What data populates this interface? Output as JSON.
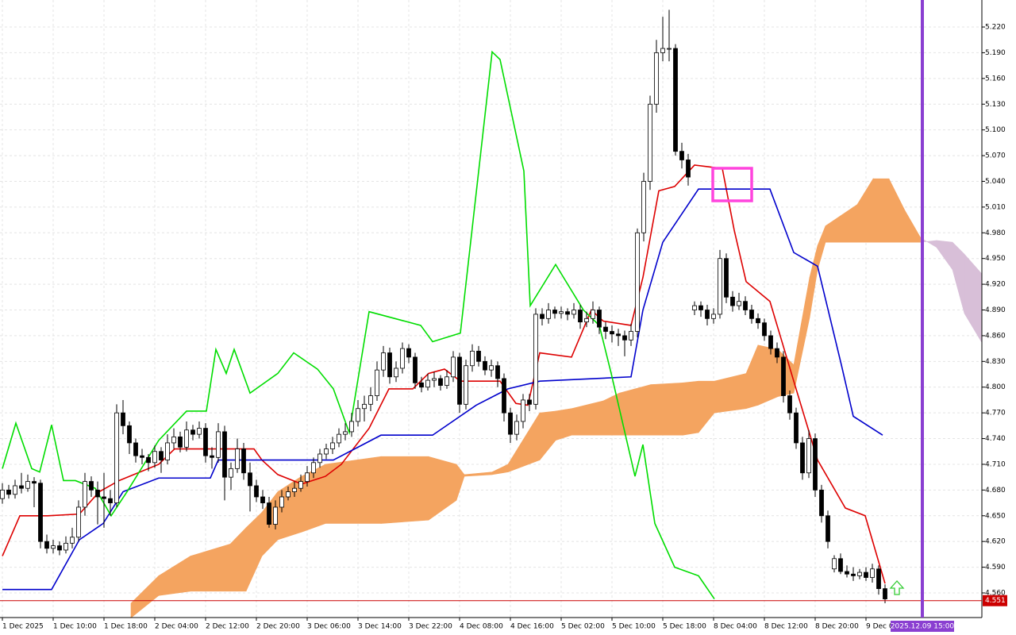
{
  "chart_data": {
    "type": "candlestick",
    "xlim": [
      -0.375,
      154.25
    ],
    "ylim": [
      4.5313,
      5.2515
    ],
    "grid": true,
    "colors": {
      "bull_body": "#ffffff",
      "bear_body": "#000000",
      "candle_line": "#000000",
      "cloud_bull": "#f4a460",
      "cloud_bear": "#d8bfd8",
      "price_line": "#cc0000",
      "cursor": "#8a3fd1"
    },
    "yticks": [
      {
        "value": 5.22,
        "label": "5.220"
      },
      {
        "value": 5.19,
        "label": "5.190"
      },
      {
        "value": 5.16,
        "label": "5.160"
      },
      {
        "value": 5.13,
        "label": "5.130"
      },
      {
        "value": 5.1,
        "label": "5.100"
      },
      {
        "value": 5.07,
        "label": "5.070"
      },
      {
        "value": 5.04,
        "label": "5.040"
      },
      {
        "value": 5.01,
        "label": "5.010"
      },
      {
        "value": 4.98,
        "label": "4.980"
      },
      {
        "value": 4.95,
        "label": "4.950"
      },
      {
        "value": 4.92,
        "label": "4.920"
      },
      {
        "value": 4.89,
        "label": "4.890"
      },
      {
        "value": 4.86,
        "label": "4.860"
      },
      {
        "value": 4.83,
        "label": "4.830"
      },
      {
        "value": 4.8,
        "label": "4.800"
      },
      {
        "value": 4.77,
        "label": "4.770"
      },
      {
        "value": 4.74,
        "label": "4.740"
      },
      {
        "value": 4.71,
        "label": "4.710"
      },
      {
        "value": 4.68,
        "label": "4.680"
      },
      {
        "value": 4.65,
        "label": "4.650"
      },
      {
        "value": 4.62,
        "label": "4.620"
      },
      {
        "value": 4.59,
        "label": "4.590"
      },
      {
        "value": 4.56,
        "label": "4.560"
      }
    ],
    "xticks": [
      {
        "value": 0,
        "label": "1 Dec 2025"
      },
      {
        "value": 8,
        "label": "1 Dec 10:00"
      },
      {
        "value": 16,
        "label": "1 Dec 18:00"
      },
      {
        "value": 24,
        "label": "2 Dec 04:00"
      },
      {
        "value": 32,
        "label": "2 Dec 12:00"
      },
      {
        "value": 40,
        "label": "2 Dec 20:00"
      },
      {
        "value": 48,
        "label": "3 Dec 06:00"
      },
      {
        "value": 56,
        "label": "3 Dec 14:00"
      },
      {
        "value": 64,
        "label": "3 Dec 22:00"
      },
      {
        "value": 72,
        "label": "4 Dec 08:00"
      },
      {
        "value": 80,
        "label": "4 Dec 16:00"
      },
      {
        "value": 88,
        "label": "5 Dec 02:00"
      },
      {
        "value": 96,
        "label": "5 Dec 10:00"
      },
      {
        "value": 104,
        "label": "5 Dec 18:00"
      },
      {
        "value": 112,
        "label": "8 Dec 04:00"
      },
      {
        "value": 120,
        "label": "8 Dec 12:00"
      },
      {
        "value": 128,
        "label": "8 Dec 20:00"
      },
      {
        "value": 136,
        "label": "9 Dec 04:00"
      }
    ],
    "candles": [
      [
        4.67,
        4.688,
        4.664,
        4.68
      ],
      [
        4.68,
        4.686,
        4.67,
        4.675
      ],
      [
        4.675,
        4.692,
        4.67,
        4.685
      ],
      [
        4.685,
        4.7,
        4.676,
        4.682
      ],
      [
        4.682,
        4.698,
        4.678,
        4.69
      ],
      [
        4.69,
        4.695,
        4.66,
        4.688
      ],
      [
        4.688,
        4.692,
        4.612,
        4.62
      ],
      [
        4.62,
        4.628,
        4.606,
        4.612
      ],
      [
        4.612,
        4.622,
        4.606,
        4.615
      ],
      [
        4.615,
        4.62,
        4.604,
        4.61
      ],
      [
        4.61,
        4.626,
        4.606,
        4.618
      ],
      [
        4.618,
        4.636,
        4.612,
        4.625
      ],
      [
        4.625,
        4.668,
        4.62,
        4.66
      ],
      [
        4.66,
        4.7,
        4.65,
        4.69
      ],
      [
        4.69,
        4.696,
        4.672,
        4.68
      ],
      [
        4.68,
        4.69,
        4.64,
        4.672
      ],
      [
        4.672,
        4.7,
        4.636,
        4.67
      ],
      [
        4.67,
        4.68,
        4.65,
        4.665
      ],
      [
        4.665,
        4.78,
        4.66,
        4.77
      ],
      [
        4.77,
        4.785,
        4.745,
        4.755
      ],
      [
        4.755,
        4.76,
        4.722,
        4.735
      ],
      [
        4.735,
        4.74,
        4.712,
        4.72
      ],
      [
        4.72,
        4.728,
        4.71,
        4.718
      ],
      [
        4.718,
        4.722,
        4.702,
        4.712
      ],
      [
        4.712,
        4.732,
        4.706,
        4.725
      ],
      [
        4.725,
        4.73,
        4.7,
        4.715
      ],
      [
        4.715,
        4.745,
        4.71,
        4.735
      ],
      [
        4.735,
        4.752,
        4.728,
        4.742
      ],
      [
        4.742,
        4.748,
        4.724,
        4.73
      ],
      [
        4.73,
        4.76,
        4.725,
        4.75
      ],
      [
        4.75,
        4.756,
        4.738,
        4.745
      ],
      [
        4.745,
        4.76,
        4.74,
        4.752
      ],
      [
        4.752,
        4.758,
        4.712,
        4.72
      ],
      [
        4.72,
        4.73,
        4.705,
        4.718
      ],
      [
        4.718,
        4.758,
        4.712,
        4.748
      ],
      [
        4.748,
        4.755,
        4.668,
        4.695
      ],
      [
        4.695,
        4.712,
        4.68,
        4.705
      ],
      [
        4.705,
        4.74,
        4.7,
        4.728
      ],
      [
        4.728,
        4.735,
        4.692,
        4.7
      ],
      [
        4.7,
        4.712,
        4.655,
        4.685
      ],
      [
        4.685,
        4.692,
        4.666,
        4.672
      ],
      [
        4.672,
        4.68,
        4.658,
        4.665
      ],
      [
        4.665,
        4.672,
        4.636,
        4.64
      ],
      [
        4.64,
        4.668,
        4.634,
        4.66
      ],
      [
        4.66,
        4.68,
        4.654,
        4.672
      ],
      [
        4.672,
        4.684,
        4.668,
        4.678
      ],
      [
        4.678,
        4.69,
        4.672,
        4.682
      ],
      [
        4.682,
        4.698,
        4.678,
        4.69
      ],
      [
        4.69,
        4.708,
        4.684,
        4.7
      ],
      [
        4.7,
        4.718,
        4.694,
        4.712
      ],
      [
        4.712,
        4.728,
        4.706,
        4.722
      ],
      [
        4.722,
        4.734,
        4.716,
        4.728
      ],
      [
        4.728,
        4.742,
        4.722,
        4.735
      ],
      [
        4.735,
        4.752,
        4.73,
        4.745
      ],
      [
        4.745,
        4.758,
        4.738,
        4.748
      ],
      [
        4.748,
        4.77,
        4.742,
        4.76
      ],
      [
        4.76,
        4.785,
        4.754,
        4.775
      ],
      [
        4.775,
        4.79,
        4.76,
        4.78
      ],
      [
        4.78,
        4.8,
        4.772,
        4.79
      ],
      [
        4.79,
        4.83,
        4.784,
        4.82
      ],
      [
        4.82,
        4.848,
        4.812,
        4.84
      ],
      [
        4.84,
        4.846,
        4.804,
        4.812
      ],
      [
        4.812,
        4.83,
        4.806,
        4.822
      ],
      [
        4.822,
        4.852,
        4.816,
        4.845
      ],
      [
        4.845,
        4.85,
        4.828,
        4.835
      ],
      [
        4.835,
        4.84,
        4.798,
        4.805
      ],
      [
        4.805,
        4.812,
        4.794,
        4.8
      ],
      [
        4.8,
        4.816,
        4.796,
        4.808
      ],
      [
        4.808,
        4.818,
        4.8,
        4.81
      ],
      [
        4.81,
        4.814,
        4.796,
        4.802
      ],
      [
        4.802,
        4.82,
        4.798,
        4.812
      ],
      [
        4.812,
        4.842,
        4.806,
        4.835
      ],
      [
        4.835,
        4.84,
        4.77,
        4.78
      ],
      [
        4.78,
        4.832,
        4.774,
        4.825
      ],
      [
        4.825,
        4.85,
        4.818,
        4.842
      ],
      [
        4.842,
        4.848,
        4.824,
        4.83
      ],
      [
        4.83,
        4.836,
        4.814,
        4.82
      ],
      [
        4.82,
        4.832,
        4.812,
        4.825
      ],
      [
        4.825,
        4.83,
        4.8,
        4.81
      ],
      [
        4.81,
        4.816,
        4.76,
        4.77
      ],
      [
        4.77,
        4.776,
        4.735,
        4.745
      ],
      [
        4.745,
        4.768,
        4.738,
        4.76
      ],
      [
        4.76,
        4.792,
        4.752,
        4.785
      ],
      [
        4.785,
        4.792,
        4.772,
        4.78
      ],
      [
        4.78,
        4.892,
        4.774,
        4.885
      ],
      [
        4.885,
        4.892,
        4.872,
        4.88
      ],
      [
        4.88,
        4.898,
        4.874,
        4.89
      ],
      [
        4.89,
        4.894,
        4.88,
        4.886
      ],
      [
        4.886,
        4.894,
        4.88,
        4.888
      ],
      [
        4.888,
        4.892,
        4.878,
        4.885
      ],
      [
        4.885,
        4.898,
        4.88,
        4.89
      ],
      [
        4.89,
        4.896,
        4.868,
        4.876
      ],
      [
        4.876,
        4.888,
        4.87,
        4.88
      ],
      [
        4.88,
        4.9,
        4.874,
        4.89
      ],
      [
        4.89,
        4.894,
        4.862,
        4.87
      ],
      [
        4.87,
        4.876,
        4.856,
        4.865
      ],
      [
        4.865,
        4.872,
        4.852,
        4.862
      ],
      [
        4.862,
        4.868,
        4.848,
        4.86
      ],
      [
        4.86,
        4.866,
        4.836,
        4.855
      ],
      [
        4.855,
        4.874,
        4.848,
        4.865
      ],
      [
        4.865,
        4.985,
        4.858,
        4.98
      ],
      [
        4.98,
        5.05,
        4.97,
        5.04
      ],
      [
        5.04,
        5.14,
        5.03,
        5.13
      ],
      [
        5.13,
        5.205,
        5.12,
        5.19
      ],
      [
        5.19,
        5.232,
        5.18,
        5.195
      ],
      [
        5.195,
        5.24,
        5.18,
        5.195
      ],
      [
        5.195,
        5.2,
        5.07,
        5.075
      ],
      [
        5.075,
        5.085,
        5.055,
        5.065
      ],
      [
        5.065,
        5.072,
        5.035,
        5.045
      ],
      [
        4.89,
        4.9,
        4.884,
        4.895
      ],
      [
        4.895,
        4.9,
        4.882,
        4.89
      ],
      [
        4.89,
        4.896,
        4.872,
        4.88
      ],
      [
        4.88,
        4.892,
        4.874,
        4.885
      ],
      [
        4.885,
        4.96,
        4.88,
        4.95
      ],
      [
        4.95,
        4.956,
        4.898,
        4.905
      ],
      [
        4.905,
        4.912,
        4.888,
        4.895
      ],
      [
        4.895,
        4.91,
        4.89,
        4.9
      ],
      [
        4.9,
        4.906,
        4.884,
        4.89
      ],
      [
        4.89,
        4.896,
        4.874,
        4.88
      ],
      [
        4.88,
        4.886,
        4.868,
        4.875
      ],
      [
        4.875,
        4.88,
        4.854,
        4.86
      ],
      [
        4.86,
        4.866,
        4.838,
        4.845
      ],
      [
        4.845,
        4.852,
        4.828,
        4.835
      ],
      [
        4.835,
        4.842,
        4.782,
        4.79
      ],
      [
        4.79,
        4.796,
        4.762,
        4.77
      ],
      [
        4.77,
        4.776,
        4.728,
        4.735
      ],
      [
        4.735,
        4.742,
        4.692,
        4.7
      ],
      [
        4.7,
        4.75,
        4.694,
        4.74
      ],
      [
        4.74,
        4.746,
        4.672,
        4.68
      ],
      [
        4.68,
        4.686,
        4.642,
        4.65
      ],
      [
        4.65,
        4.656,
        4.612,
        4.62
      ],
      [
        4.588,
        4.604,
        4.584,
        4.6
      ],
      [
        4.6,
        4.606,
        4.582,
        4.585
      ],
      [
        4.585,
        4.592,
        4.578,
        4.582
      ],
      [
        4.582,
        4.59,
        4.574,
        4.58
      ],
      [
        4.58,
        4.588,
        4.576,
        4.584
      ],
      [
        4.584,
        4.59,
        4.574,
        4.578
      ],
      [
        4.578,
        4.594,
        4.572,
        4.588
      ],
      [
        4.588,
        4.592,
        4.558,
        4.565
      ],
      [
        4.565,
        4.57,
        4.548,
        4.553
      ]
    ],
    "series": [
      {
        "color": "#dd0000",
        "x": [
          0,
          2.75,
          7.125,
          12.125,
          15.25,
          18.375,
          24.625,
          27.125,
          39.625,
          40.875,
          43.375,
          47.125,
          50.875,
          53.375,
          57.75,
          60.875,
          64.625,
          67.125,
          69.625,
          72.125,
          78.375,
          80.875,
          82.75,
          84.625,
          89.625,
          92.75,
          94.625,
          99,
          100.875,
          103.375,
          105.875,
          109,
          113.375,
          115.25,
          117.125,
          120.875,
          124.625,
          128.375,
          132.75,
          135.875,
          139
        ],
        "values": [
          4.603,
          4.65,
          4.65,
          4.652,
          4.678,
          4.691,
          4.71,
          4.728,
          4.728,
          4.715,
          4.698,
          4.687,
          4.696,
          4.71,
          4.752,
          4.798,
          4.798,
          4.816,
          4.821,
          4.807,
          4.807,
          4.781,
          4.779,
          4.84,
          4.835,
          4.89,
          4.877,
          4.872,
          4.928,
          5.029,
          5.034,
          5.059,
          5.055,
          4.983,
          4.923,
          4.9,
          4.807,
          4.715,
          4.659,
          4.65,
          4.571
        ]
      },
      {
        "color": "#0000cc",
        "x": [
          0,
          7.75,
          12.125,
          15.875,
          19,
          24.625,
          32.75,
          34,
          52.125,
          59.625,
          67.75,
          74.625,
          79.625,
          84.625,
          99,
          100.875,
          104,
          109.625,
          120.875,
          124.625,
          128.375,
          132.125,
          134,
          138.625
        ],
        "values": [
          4.564,
          4.564,
          4.622,
          4.641,
          4.678,
          4.694,
          4.694,
          4.715,
          4.715,
          4.744,
          4.744,
          4.779,
          4.798,
          4.807,
          4.812,
          4.89,
          4.969,
          5.031,
          5.031,
          4.957,
          4.941,
          4.826,
          4.766,
          4.744
        ]
      },
      {
        "color": "#00dd00",
        "x": [
          0,
          2.125,
          4.625,
          5.875,
          7.75,
          9.625,
          11.5,
          14.625,
          17.125,
          19.625,
          24.625,
          29,
          32.125,
          33.625,
          35.25,
          36.5,
          39,
          43.375,
          45.875,
          49.625,
          52.125,
          54.625,
          57.75,
          65.875,
          67.75,
          72.125,
          77.125,
          78.375,
          82.125,
          83.125,
          87.125,
          91.5,
          94,
          95.875,
          99.625,
          100.875,
          102.75,
          105.875,
          109.625,
          112.125
        ],
        "values": [
          4.705,
          4.758,
          4.705,
          4.701,
          4.756,
          4.691,
          4.691,
          4.682,
          4.65,
          4.678,
          4.738,
          4.772,
          4.772,
          4.844,
          4.816,
          4.844,
          4.793,
          4.816,
          4.84,
          4.821,
          4.798,
          4.747,
          4.888,
          4.872,
          4.853,
          4.863,
          5.191,
          5.182,
          5.052,
          4.895,
          4.943,
          4.89,
          4.872,
          4.816,
          4.696,
          4.733,
          4.641,
          4.59,
          4.58,
          4.553
        ]
      }
    ],
    "cloud": {
      "x": [
        20.25,
        24.625,
        29.625,
        35.875,
        38.375,
        40.875,
        43.375,
        47.125,
        50.875,
        59.625,
        67.125,
        71.5,
        72.75,
        77.125,
        79.625,
        84.625,
        87.125,
        89.625,
        94.625,
        97.125,
        102.125,
        107.125,
        109.625,
        112.125,
        117.125,
        119,
        122.125,
        124.625,
        127.125,
        128.375,
        129.625,
        134.625,
        137.125,
        139.625,
        142.125,
        144.625,
        147.125,
        149.625,
        151.5,
        154.25
      ],
      "span_a": [
        4.548,
        4.58,
        4.603,
        4.617,
        4.636,
        4.654,
        4.678,
        4.696,
        4.71,
        4.719,
        4.719,
        4.71,
        4.698,
        4.701,
        4.71,
        4.77,
        4.772,
        4.775,
        4.784,
        4.793,
        4.803,
        4.805,
        4.807,
        4.807,
        4.816,
        4.849,
        4.844,
        4.826,
        4.928,
        4.965,
        4.988,
        5.013,
        5.043,
        5.043,
        5.006,
        4.974,
        4.963,
        4.937,
        4.886,
        4.852
      ],
      "span_b": [
        4.531,
        4.557,
        4.562,
        4.562,
        4.562,
        4.603,
        4.622,
        4.631,
        4.641,
        4.641,
        4.645,
        4.668,
        4.696,
        4.698,
        4.701,
        4.715,
        4.738,
        4.744,
        4.744,
        4.744,
        4.744,
        4.744,
        4.747,
        4.77,
        4.775,
        4.779,
        4.789,
        4.793,
        4.881,
        4.937,
        4.969,
        4.969,
        4.969,
        4.969,
        4.969,
        4.969,
        4.971,
        4.969,
        4.955,
        4.932
      ]
    },
    "price": {
      "value": 4.551
    },
    "cursor": {
      "x": 144.875,
      "label": "2025.12.09 15:00"
    }
  }
}
